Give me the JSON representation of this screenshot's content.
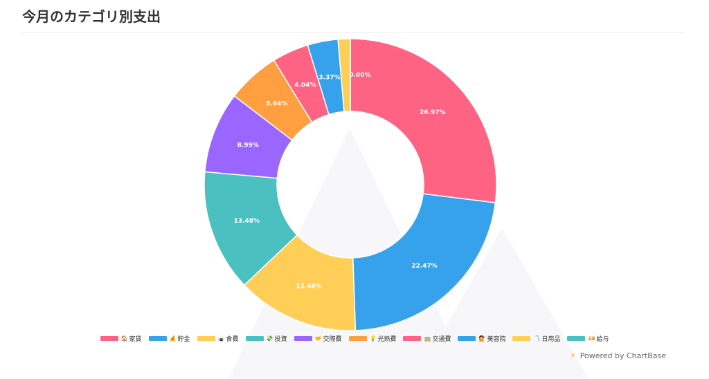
{
  "page": {
    "title": "今月のカテゴリ別支出"
  },
  "footer": {
    "powered_by": "Powered by ChartBase",
    "bolt_icon": "⚡"
  },
  "chart_data": {
    "type": "pie",
    "variant": "doughnut",
    "title": "今月のカテゴリ別支出",
    "slices": [
      {
        "label": "家賃",
        "icon": "🏠",
        "percent": 26.97,
        "percent_label": "26.97%",
        "color": "#ff6384"
      },
      {
        "label": "貯金",
        "icon": "💰",
        "percent": 22.47,
        "percent_label": "22.47%",
        "color": "#36a2eb"
      },
      {
        "label": "食費",
        "icon": "🍙",
        "percent": 13.48,
        "percent_label": "13.48%",
        "color": "#ffce56"
      },
      {
        "label": "投資",
        "icon": "💸",
        "percent": 13.48,
        "percent_label": "13.48%",
        "color": "#4bc0c0"
      },
      {
        "label": "交際費",
        "icon": "🤝",
        "percent": 8.99,
        "percent_label": "8.99%",
        "color": "#9966ff"
      },
      {
        "label": "光熱費",
        "icon": "💡",
        "percent": 5.84,
        "percent_label": "5.84%",
        "color": "#ff9f40"
      },
      {
        "label": "交通費",
        "icon": "🚃",
        "percent": 4.04,
        "percent_label": "4.04%",
        "color": "#ff6384"
      },
      {
        "label": "美容院",
        "icon": "💇",
        "percent": 3.37,
        "percent_label": "3.37%",
        "color": "#36a2eb"
      },
      {
        "label": "日用品",
        "icon": "🧻",
        "percent": 1.35,
        "percent_label": "",
        "color": "#ffce56"
      },
      {
        "label": "給与",
        "icon": "💴",
        "percent": 0.0,
        "percent_label": "0.00%",
        "color": "#4bc0c0"
      }
    ],
    "legend_position": "bottom"
  }
}
